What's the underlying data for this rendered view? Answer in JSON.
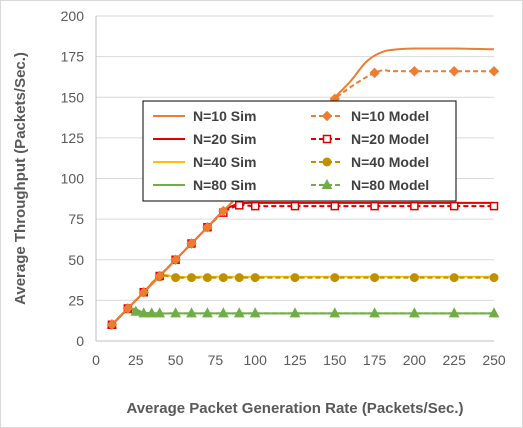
{
  "chart_data": {
    "type": "line",
    "title": "",
    "xlabel": "Average Packet Generation Rate (Packets/Sec.)",
    "ylabel": "Average Throughput (Packets/Sec.)",
    "xlim": [
      0,
      250
    ],
    "ylim": [
      0,
      200
    ],
    "xticks": [
      0,
      25,
      50,
      75,
      100,
      125,
      150,
      175,
      200,
      225,
      250
    ],
    "yticks": [
      0,
      25,
      50,
      75,
      100,
      125,
      150,
      175,
      200
    ],
    "grid": "horizontal major gridlines",
    "legend_placement": "center-left, two columns",
    "series": [
      {
        "name": "N=10 Sim",
        "color": "#ed7d31",
        "style": "solid",
        "marker": "none",
        "x": [
          10,
          20,
          30,
          40,
          50,
          60,
          70,
          80,
          90,
          100,
          110,
          125,
          140,
          150,
          160,
          170,
          180,
          190,
          200,
          210,
          225,
          250
        ],
        "y": [
          10,
          20,
          30,
          40,
          50,
          60,
          70,
          80,
          90,
          100,
          110,
          125,
          140,
          150,
          160,
          172,
          178,
          179.5,
          180,
          180,
          180,
          179.5
        ]
      },
      {
        "name": "N=10 Model",
        "color": "#ed7d31",
        "style": "dashed",
        "marker": "diamond",
        "x": [
          10,
          20,
          30,
          40,
          50,
          60,
          70,
          80,
          90,
          100,
          110,
          125,
          150,
          175,
          187,
          200,
          225,
          250
        ],
        "y": [
          10,
          20,
          30,
          40,
          50,
          60,
          70,
          80,
          90,
          100,
          110,
          125,
          149,
          165,
          166,
          166,
          166,
          166
        ]
      },
      {
        "name": "N=20 Sim",
        "color": "#e00000",
        "style": "solid",
        "marker": "none",
        "x": [
          10,
          20,
          30,
          40,
          50,
          60,
          70,
          80,
          88,
          95,
          100,
          125,
          150,
          175,
          200,
          225,
          250
        ],
        "y": [
          10,
          20,
          30,
          40,
          50,
          60,
          70,
          80,
          84,
          85,
          85,
          85,
          85,
          85,
          85,
          85,
          85
        ]
      },
      {
        "name": "N=20 Model",
        "color": "#e00000",
        "style": "dashed",
        "marker": "square",
        "x": [
          10,
          20,
          30,
          40,
          50,
          60,
          70,
          80,
          90,
          100,
          125,
          150,
          175,
          200,
          225,
          250
        ],
        "y": [
          10,
          20,
          30,
          40,
          50,
          60,
          70,
          79,
          83.5,
          83,
          83,
          83,
          83,
          83,
          83,
          83
        ]
      },
      {
        "name": "N=40 Sim",
        "color": "#ffc000",
        "style": "solid",
        "marker": "none",
        "x": [
          10,
          20,
          30,
          40,
          50,
          60,
          70,
          80,
          90,
          100,
          125,
          150,
          175,
          200,
          225,
          250
        ],
        "y": [
          10,
          20,
          30,
          40,
          39.5,
          39.5,
          39.5,
          39.5,
          39.5,
          39.5,
          39.5,
          39.5,
          39.5,
          39.5,
          39.5,
          39.5
        ]
      },
      {
        "name": "N=40 Model",
        "color": "#bf9000",
        "style": "dashed",
        "marker": "circle",
        "x": [
          10,
          20,
          30,
          40,
          50,
          60,
          70,
          80,
          90,
          100,
          125,
          150,
          175,
          200,
          225,
          250
        ],
        "y": [
          10,
          20,
          30,
          39.5,
          39,
          39,
          39,
          39,
          39,
          39,
          39,
          39,
          39,
          39,
          39,
          39
        ]
      },
      {
        "name": "N=80 Sim",
        "color": "#70ad47",
        "style": "solid",
        "marker": "none",
        "x": [
          10,
          15,
          20,
          25,
          30,
          40,
          50,
          60,
          70,
          80,
          90,
          100,
          125,
          150,
          175,
          200,
          225,
          250
        ],
        "y": [
          10,
          15,
          19.5,
          19.5,
          17.5,
          17,
          17,
          17,
          17,
          17,
          17,
          17,
          17,
          17,
          17,
          17,
          17,
          17
        ]
      },
      {
        "name": "N=80 Model",
        "color": "#70ad47",
        "style": "dashed",
        "marker": "triangle",
        "x": [
          10,
          20,
          25,
          30,
          35,
          40,
          50,
          60,
          70,
          80,
          90,
          100,
          125,
          150,
          175,
          200,
          225,
          250
        ],
        "y": [
          10,
          19.5,
          18,
          17,
          17,
          17,
          17,
          17,
          17,
          17,
          17,
          17,
          17,
          17,
          17,
          17,
          17,
          17
        ]
      }
    ]
  }
}
